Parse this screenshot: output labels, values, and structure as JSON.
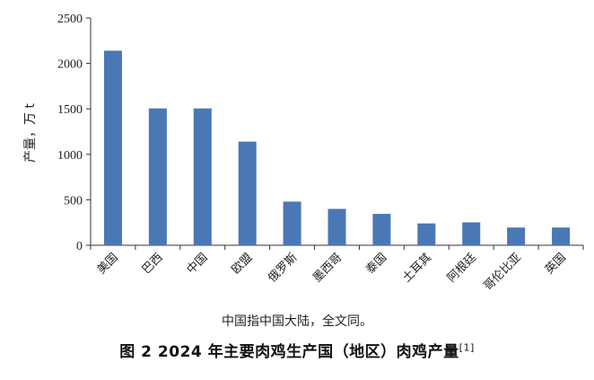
{
  "chart_data": {
    "type": "bar",
    "ylabel": "产量，万 t",
    "ylim": [
      0,
      2500
    ],
    "yticks": [
      0,
      500,
      1000,
      1500,
      2000,
      2500
    ],
    "categories": [
      "美国",
      "巴西",
      "中国",
      "欧盟",
      "俄罗斯",
      "墨西哥",
      "泰国",
      "土耳其",
      "阿根廷",
      "哥伦比亚",
      "英国"
    ],
    "values": [
      2140,
      1505,
      1505,
      1140,
      480,
      400,
      345,
      240,
      252,
      195,
      195
    ],
    "bar_color": "#4a78b5",
    "grid": false,
    "legend": "none"
  },
  "note": "中国指中国大陆，全文同。",
  "caption": {
    "text": "图 2  2024 年主要肉鸡生产国（地区）肉鸡产量",
    "ref": "[1]"
  }
}
